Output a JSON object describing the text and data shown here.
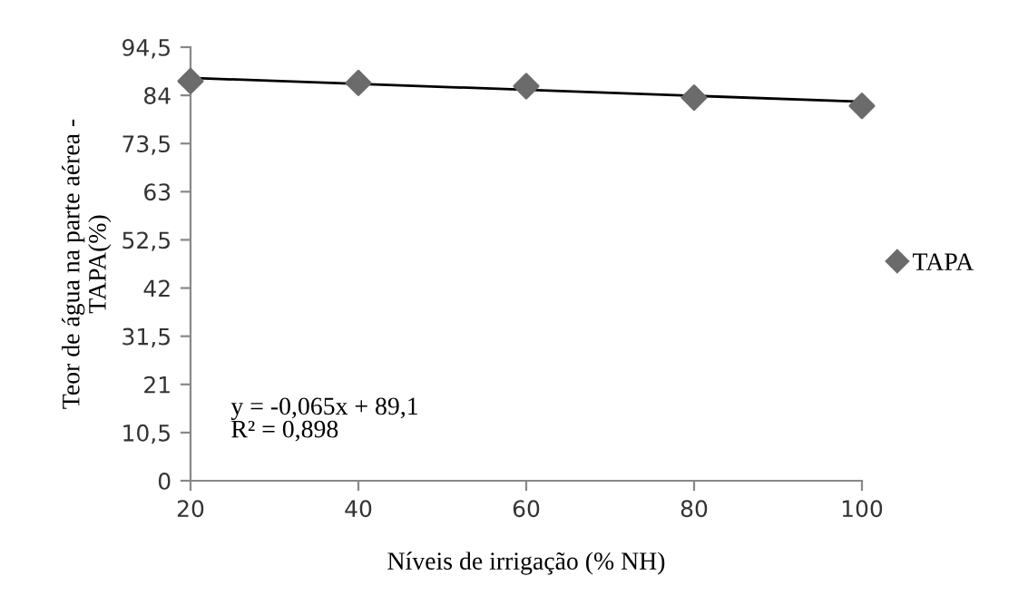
{
  "chart_data": {
    "type": "scatter",
    "xlabel": "Níveis de irrigação (% NH)",
    "ylabel": "Teor de água na parte aérea -\nTAPA(%)",
    "x": [
      20,
      40,
      60,
      80,
      100
    ],
    "series": [
      {
        "name": "TAPA",
        "color": "#6b6b6b",
        "marker": "diamond",
        "values": [
          87.1,
          86.7,
          86.0,
          83.5,
          81.7
        ]
      },
      {
        "type": "line",
        "color": "#000000",
        "x": [
          20,
          100
        ],
        "values": [
          87.8,
          82.6
        ],
        "line_style": "solid"
      }
    ],
    "xlim": [
      20,
      100
    ],
    "xticks": [
      20,
      40,
      60,
      80,
      100
    ],
    "ylim": [
      0,
      94.5
    ],
    "yticks": [
      {
        "value": 0,
        "label": "0"
      },
      {
        "value": 10.5,
        "label": "10,5"
      },
      {
        "value": 21,
        "label": "21"
      },
      {
        "value": 31.5,
        "label": "31,5"
      },
      {
        "value": 42,
        "label": "42"
      },
      {
        "value": 52.5,
        "label": "52,5"
      },
      {
        "value": 63,
        "label": "63"
      },
      {
        "value": 73.5,
        "label": "73,5"
      },
      {
        "value": 84,
        "label": "84"
      },
      {
        "value": 94.5,
        "label": "94,5"
      }
    ],
    "annotations": [
      "y = -0,065x + 89,1\nR² = 0,898"
    ],
    "legend": "right",
    "grid": false
  }
}
